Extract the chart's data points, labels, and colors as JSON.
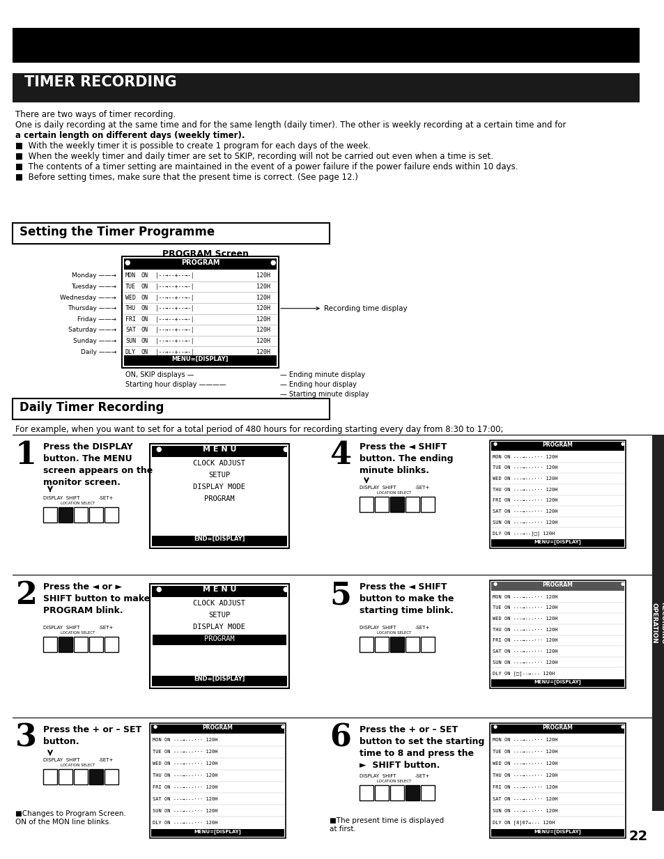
{
  "bg_color": "#ffffff",
  "page_number": "22",
  "days_full": [
    "Monday",
    "Tuesday",
    "Wednesday",
    "Thursday",
    "Friday",
    "Saturday",
    "Sunday",
    "Daily"
  ],
  "days_short": [
    "MON",
    "TUE",
    "WED",
    "THU",
    "FRI",
    "SAT",
    "SUN",
    "DLY"
  ],
  "example_text": "For example, when you want to set for a total period of 480 hours for recording starting every day from 8:30 to 17:00;",
  "menu_items": [
    "CLOCK ADJUST",
    "SETUP",
    "DISPLAY MODE",
    "PROGRAM"
  ],
  "intro_lines": [
    "There are two ways of timer recording.",
    "One is daily recording at the same time and for the same length (daily timer). The other is weekly recording at a certain time and for",
    "a certain length on different days (weekly timer).",
    "■  With the weekly timer it is possible to create 1 program for each days of the week.",
    "■  When the weekly timer and daily timer are set to SKIP, recording will not be carried out even when a time is set.",
    "■  The contents of a timer setting are maintained in the event of a power failure if the power failure ends within 10 days.",
    "■  Before setting times, make sure that the present time is correct. (See page 12.)"
  ]
}
